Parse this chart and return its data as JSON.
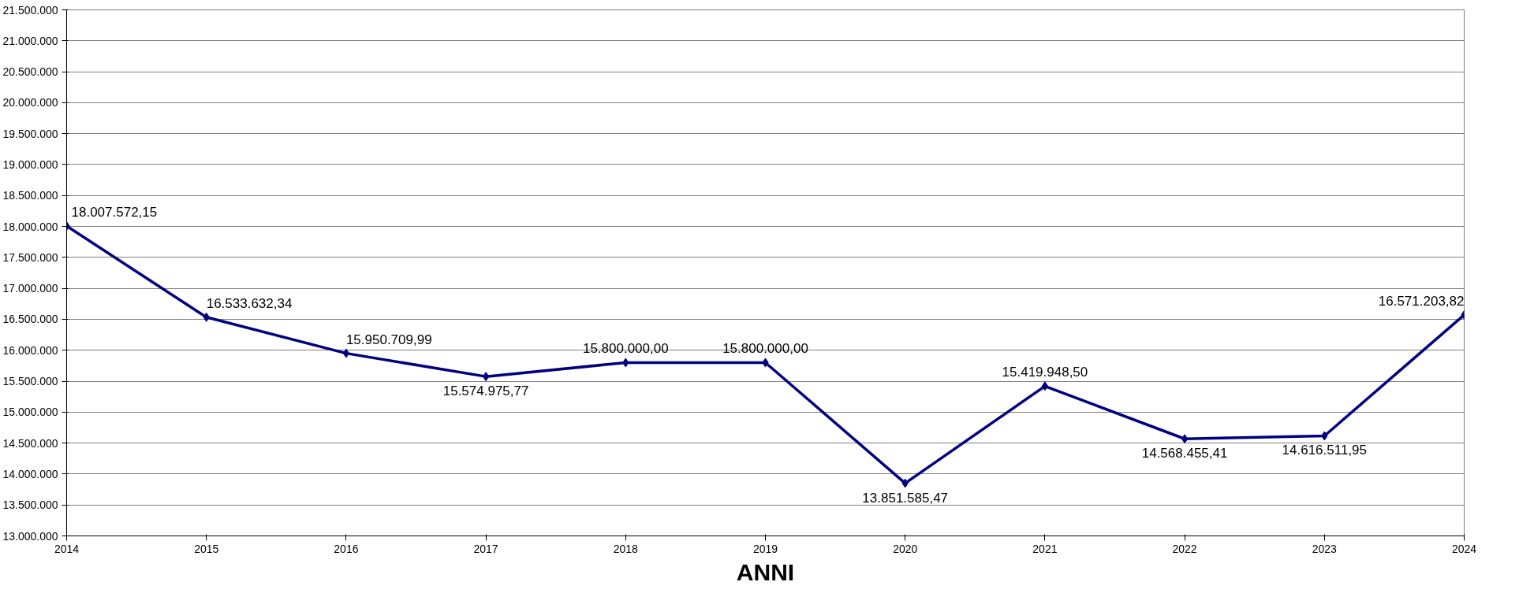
{
  "chart_data": {
    "type": "line",
    "xlabel": "ANNI",
    "x": [
      2014,
      2015,
      2016,
      2017,
      2018,
      2019,
      2020,
      2021,
      2022,
      2023,
      2024
    ],
    "series": [
      {
        "color": "#000080",
        "values": [
          18007572.15,
          16533632.34,
          15950709.99,
          15574975.77,
          15800000.0,
          15800000.0,
          13851585.47,
          15419948.5,
          14568455.41,
          14616511.95,
          16571203.82
        ],
        "value_labels": [
          "18.007.572,15",
          "16.533.632,34",
          "15.950.709,99",
          "15.574.975,77",
          "15.800.000,00",
          "15.800.000,00",
          "13.851.585,47",
          "15.419.948,50",
          "14.568.455,41",
          "14.616.511,95",
          "16.571.203,82"
        ]
      }
    ],
    "xlim": [
      2014,
      2024
    ],
    "xticks": [
      2014,
      2015,
      2016,
      2017,
      2018,
      2019,
      2020,
      2021,
      2022,
      2023,
      2024
    ],
    "ylim": [
      13000000,
      21500000
    ],
    "yticks": [
      {
        "value": 13000000,
        "label": "13.000.000"
      },
      {
        "value": 13500000,
        "label": "13.500.000"
      },
      {
        "value": 14000000,
        "label": "14.000.000"
      },
      {
        "value": 14500000,
        "label": "14.500.000"
      },
      {
        "value": 15000000,
        "label": "15.000.000"
      },
      {
        "value": 15500000,
        "label": "15.500.000"
      },
      {
        "value": 16000000,
        "label": "16.000.000"
      },
      {
        "value": 16500000,
        "label": "16.500.000"
      },
      {
        "value": 17000000,
        "label": "17.000.000"
      },
      {
        "value": 17500000,
        "label": "17.500.000"
      },
      {
        "value": 18000000,
        "label": "18.000.000"
      },
      {
        "value": 18500000,
        "label": "18.500.000"
      },
      {
        "value": 19000000,
        "label": "19.000.000"
      },
      {
        "value": 19500000,
        "label": "19.500.000"
      },
      {
        "value": 20000000,
        "label": "20.000.000"
      },
      {
        "value": 20500000,
        "label": "20.500.000"
      },
      {
        "value": 21000000,
        "label": "21.000.000"
      },
      {
        "value": 21500000,
        "label": "21.500.000"
      }
    ],
    "grid": "y",
    "marker": "diamond",
    "line_style": "solid"
  }
}
